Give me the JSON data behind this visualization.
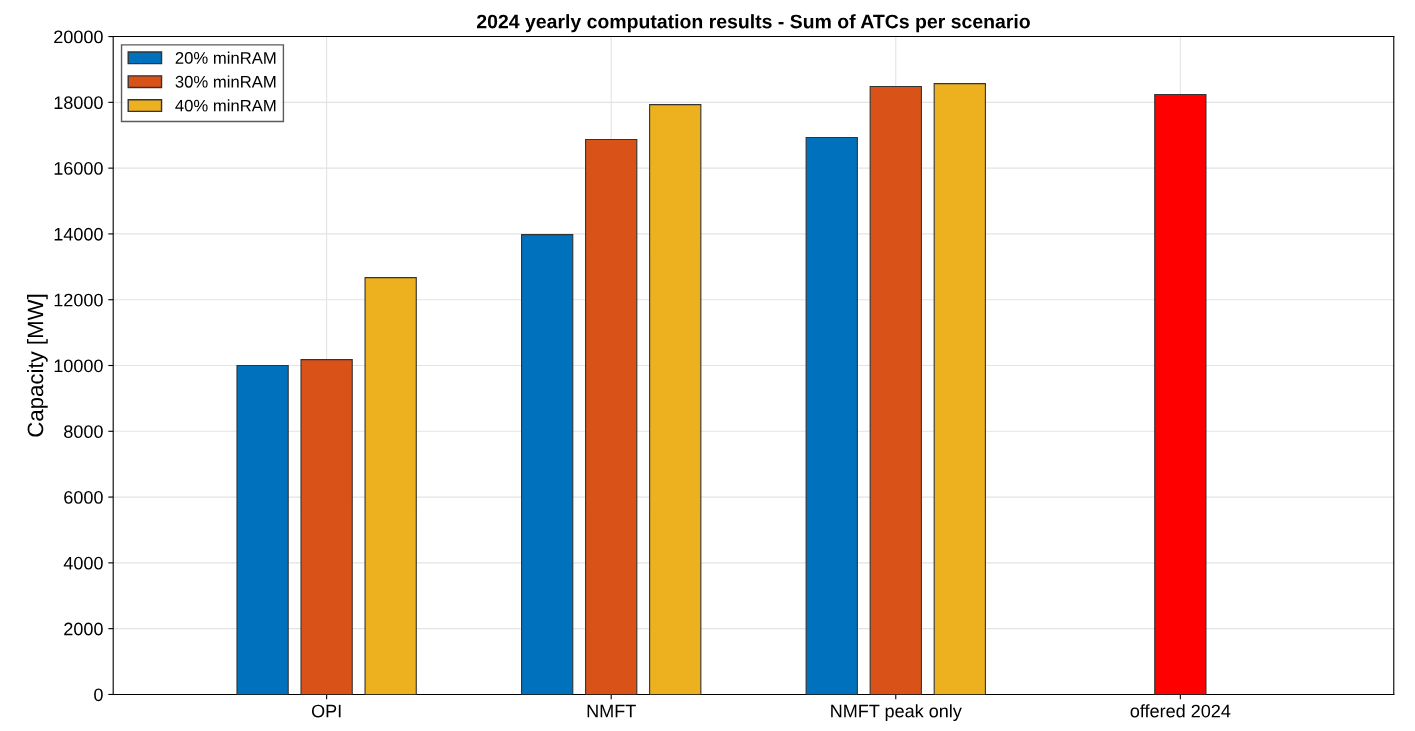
{
  "chart_data": {
    "type": "bar",
    "title": "2024 yearly computation results - Sum of ATCs per scenario",
    "ylabel": "Capacity [MW]",
    "categories": [
      "OPI",
      "NMFT",
      "NMFT peak only",
      "offered 2024"
    ],
    "series": [
      {
        "name": "20% minRAM",
        "color": "#0072bd",
        "values": [
          10000,
          13980,
          16930,
          null
        ]
      },
      {
        "name": "30% minRAM",
        "color": "#d95319",
        "values": [
          10180,
          16870,
          18480,
          null
        ]
      },
      {
        "name": "40% minRAM",
        "color": "#edb120",
        "values": [
          12670,
          17930,
          18570,
          null
        ]
      },
      {
        "color": "#ff0000",
        "values": [
          null,
          null,
          null,
          18240
        ]
      }
    ],
    "ylim": [
      0,
      20000
    ],
    "yticks": [
      0,
      2000,
      4000,
      6000,
      8000,
      10000,
      12000,
      14000,
      16000,
      18000,
      20000
    ],
    "grid": true,
    "legend": "top left"
  }
}
